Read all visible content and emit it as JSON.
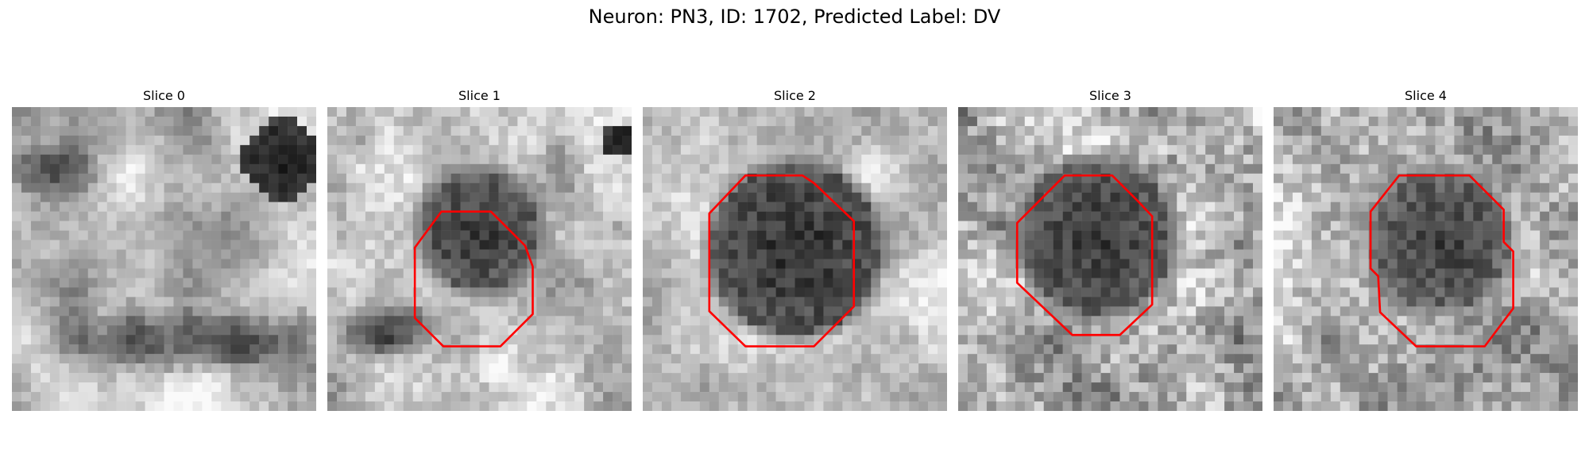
{
  "figure": {
    "title": "Neuron: PN3, ID: 1702, Predicted Label: DV"
  },
  "panels": [
    {
      "title": "Slice 0",
      "contour": false
    },
    {
      "title": "Slice 1",
      "contour": true
    },
    {
      "title": "Slice 2",
      "contour": true
    },
    {
      "title": "Slice 3",
      "contour": true
    },
    {
      "title": "Slice 4",
      "contour": true
    }
  ],
  "colors": {
    "contour": "#ff0000",
    "background": "#ffffff",
    "colormap": "gray"
  },
  "image": {
    "grid_size": 32,
    "channel": "grayscale"
  }
}
